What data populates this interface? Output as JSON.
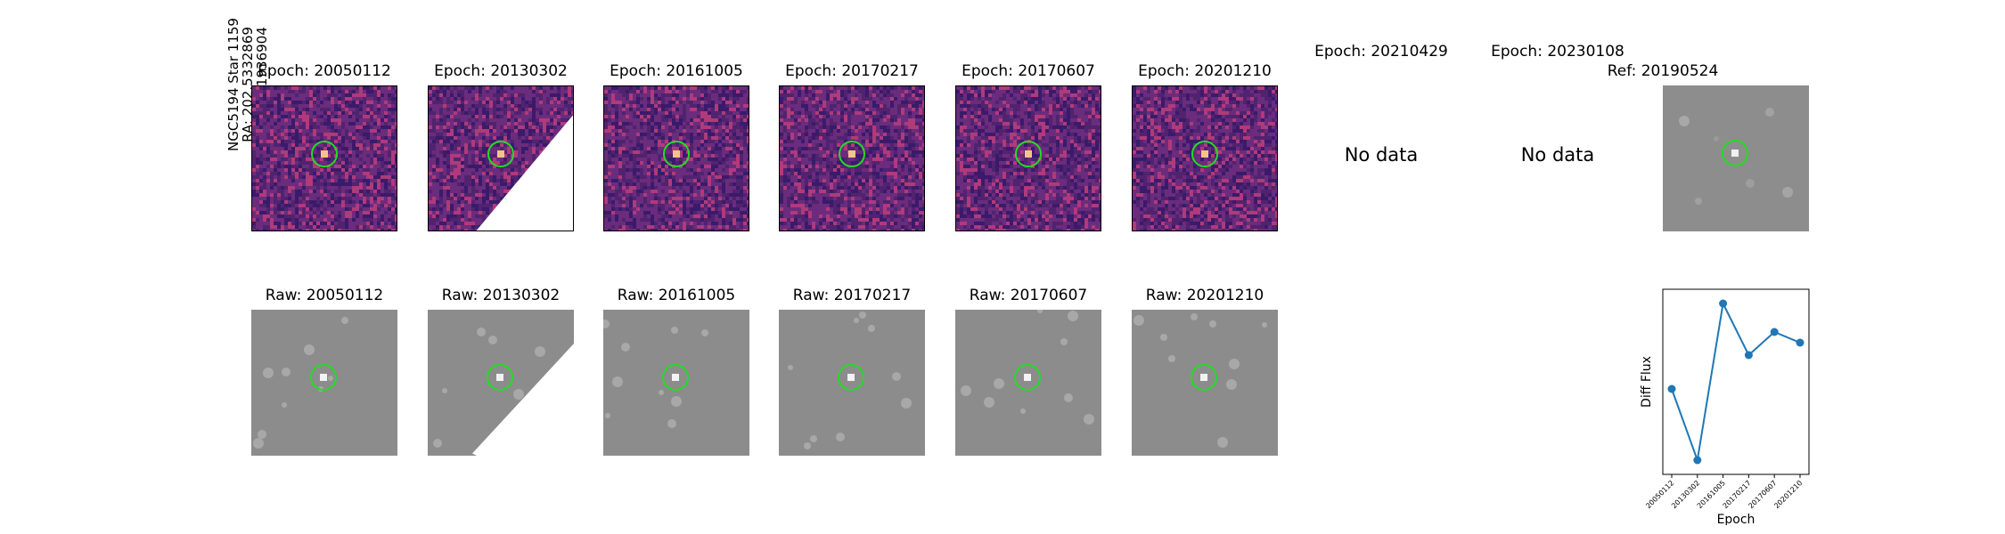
{
  "side_label": {
    "line1": "NGC5194 Star 1159",
    "line2": "RA: 202.5332869",
    "line3": "Dec: 47.1936904"
  },
  "diff_row": [
    {
      "title": "Epoch: 20050112",
      "has_data": true
    },
    {
      "title": "Epoch: 20130302",
      "has_data": true
    },
    {
      "title": "Epoch: 20161005",
      "has_data": true
    },
    {
      "title": "Epoch: 20170217",
      "has_data": true
    },
    {
      "title": "Epoch: 20170607",
      "has_data": true
    },
    {
      "title": "Epoch: 20201210",
      "has_data": true
    },
    {
      "title": "Epoch: 20210429",
      "has_data": false,
      "message": "No data"
    },
    {
      "title": "Epoch: 20230108",
      "has_data": false,
      "message": "No data"
    }
  ],
  "ref_panel": {
    "title": "Ref: 20190524"
  },
  "raw_row": [
    {
      "title": "Raw: 20050112"
    },
    {
      "title": "Raw: 20130302"
    },
    {
      "title": "Raw: 20161005"
    },
    {
      "title": "Raw: 20170217"
    },
    {
      "title": "Raw: 20170607"
    },
    {
      "title": "Raw: 20201210"
    }
  ],
  "colors": {
    "marker_circle": "#22dd22",
    "diff_colormap_low": "#3a1a6b",
    "diff_colormap_mid": "#b03a7a",
    "diff_colormap_high": "#f3c48a",
    "raw_gray": "#8c8c8c",
    "line_series": "#1f77b4"
  },
  "chart_data": {
    "type": "line",
    "xlabel": "Epoch",
    "ylabel": "Diff Flux",
    "categories": [
      "20050112",
      "20130302",
      "20161005",
      "20170217",
      "20170607",
      "20201210"
    ],
    "series": [
      {
        "values": [
          0.52,
          0.12,
          1.0,
          0.71,
          0.84,
          0.78
        ]
      }
    ],
    "ylim": [
      0.04,
      1.08
    ],
    "grid": false
  }
}
